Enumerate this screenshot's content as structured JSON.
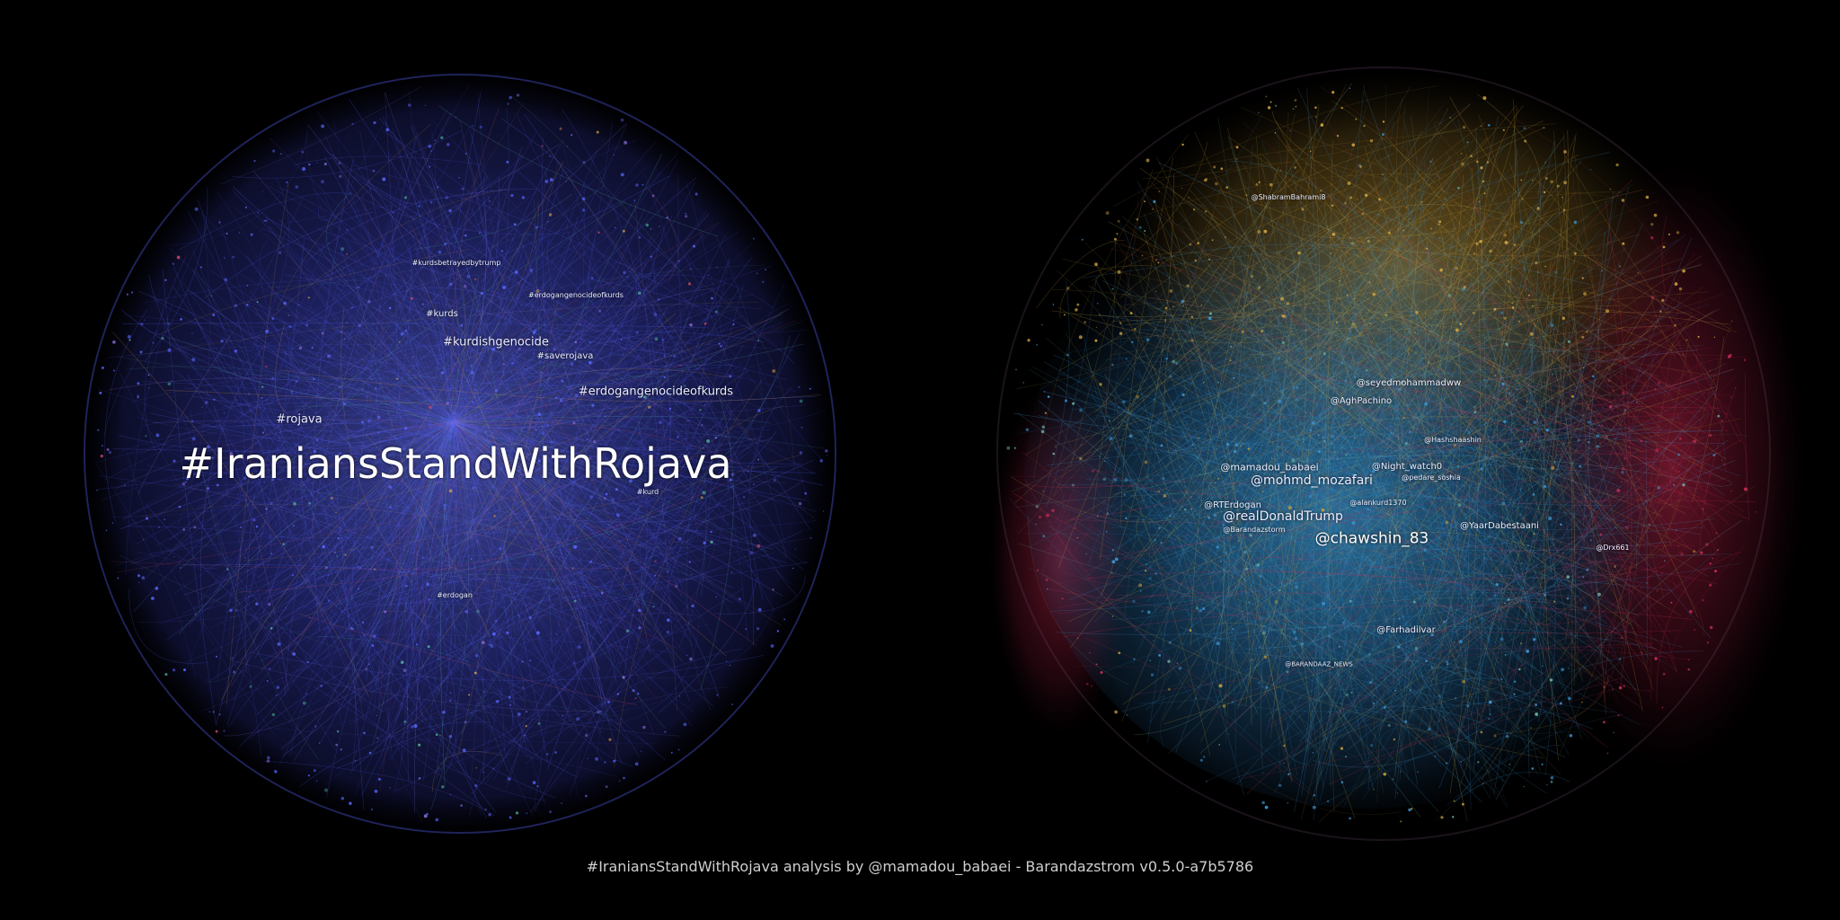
{
  "caption": "#IraniansStandWithRojava analysis by @mamadou_babaei - Barandazstrom v0.5.0-a7b5786",
  "colors": {
    "background": "#000000",
    "hashtag_network_main": "#4a56e8",
    "hashtag_network_accent": "#8a6bd8",
    "user_network_center": "#2f86c8",
    "user_network_top": "#c9a13a",
    "user_network_right": "#c4244d",
    "label": "#e9ecff"
  },
  "hashtag_network": {
    "labels": [
      {
        "text": "#IraniansStandWithRojava",
        "size": "xl"
      },
      {
        "text": "#kurdishgenocide",
        "size": "m"
      },
      {
        "text": "#erdogangenocideofkurds",
        "size": "m"
      },
      {
        "text": "#rojava",
        "size": "m"
      },
      {
        "text": "#kurds",
        "size": "s"
      },
      {
        "text": "#saverojava",
        "size": "s"
      },
      {
        "text": "#erdogangenocideofkurds",
        "size": "xs"
      },
      {
        "text": "#kurdsbetrayedbytrump",
        "size": "xs"
      },
      {
        "text": "#erdogan",
        "size": "xs"
      },
      {
        "text": "#kurd",
        "size": "xs"
      }
    ]
  },
  "user_network": {
    "labels": [
      {
        "text": "@chawshin_83",
        "size": "l"
      },
      {
        "text": "@mohmd_mozafari",
        "size": "m"
      },
      {
        "text": "@realDonaldTrump",
        "size": "m"
      },
      {
        "text": "@mamadou_babaei",
        "size": "s"
      },
      {
        "text": "@Night_watch0",
        "size": "s"
      },
      {
        "text": "@AghPachino",
        "size": "s"
      },
      {
        "text": "@seyedmohammadww",
        "size": "s"
      },
      {
        "text": "@Farhadilvar",
        "size": "s"
      },
      {
        "text": "@YaarDabestaani",
        "size": "s"
      },
      {
        "text": "@RTErdogan",
        "size": "s"
      },
      {
        "text": "@Barandazstorm",
        "size": "xs"
      },
      {
        "text": "@Hashshaashin",
        "size": "xs"
      },
      {
        "text": "@ShabramBahrami8",
        "size": "xs"
      },
      {
        "text": "@alankurd1370",
        "size": "xs"
      },
      {
        "text": "@pedare_soshia",
        "size": "xs"
      },
      {
        "text": "@Drx661",
        "size": "xs"
      },
      {
        "text": "@BARANDAAZ_NEWS",
        "size": "xs"
      }
    ]
  }
}
